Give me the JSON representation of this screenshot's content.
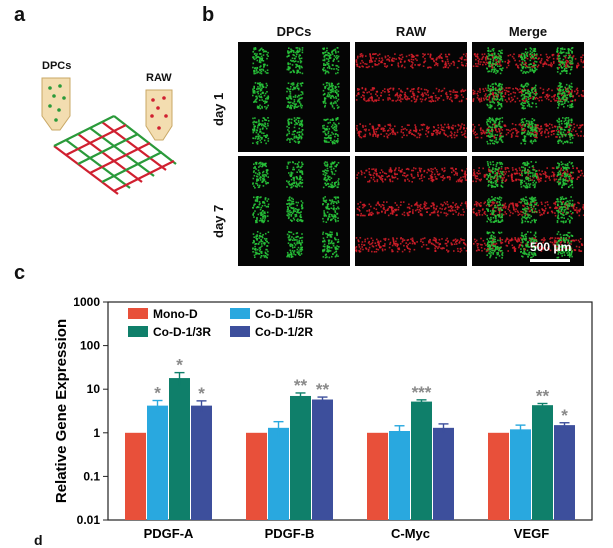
{
  "panels": {
    "a": "a",
    "b": "b",
    "c": "c",
    "d": "d"
  },
  "schematic": {
    "label_left": "DPCs",
    "label_right": "RAW"
  },
  "microscopy": {
    "columns": [
      "DPCs",
      "RAW",
      "Merge"
    ],
    "rows": [
      "day 1",
      "day 7"
    ],
    "scale_bar": "500 μm",
    "colors": {
      "green": "#27c43a",
      "red": "#d81e2a",
      "background": "#050505"
    }
  },
  "chart_data": {
    "type": "bar",
    "ylabel": "Relative Gene Expression",
    "yscale": "log",
    "ylim": [
      0.01,
      1000
    ],
    "yticks": [
      "0.01",
      "0.1",
      "1",
      "10",
      "100",
      "1000"
    ],
    "categories": [
      "PDGF-A",
      "PDGF-B",
      "C-Myc",
      "VEGF"
    ],
    "legend_placement": "top-left",
    "series": [
      {
        "name": "Mono-D",
        "color": "#e8503a",
        "values": [
          1,
          1,
          1,
          1
        ],
        "errors": [
          0,
          0,
          0,
          0
        ]
      },
      {
        "name": "Co-D-1/5R",
        "color": "#29a8df",
        "values": [
          4.2,
          1.3,
          1.1,
          1.2
        ],
        "errors": [
          1.3,
          0.5,
          0.35,
          0.3
        ]
      },
      {
        "name": "Co-D-1/3R",
        "color": "#0f7f6a",
        "values": [
          18,
          7,
          5.2,
          4.3
        ],
        "errors": [
          6,
          1.2,
          0.5,
          0.4
        ]
      },
      {
        "name": "Co-D-1/2R",
        "color": "#3d4f9c",
        "values": [
          4.2,
          5.8,
          1.3,
          1.5
        ],
        "errors": [
          1.2,
          0.8,
          0.3,
          0.2
        ]
      }
    ],
    "significance": [
      {
        "category": 0,
        "series": 1,
        "text": "*"
      },
      {
        "category": 0,
        "series": 2,
        "text": "*"
      },
      {
        "category": 0,
        "series": 3,
        "text": "*"
      },
      {
        "category": 1,
        "series": 2,
        "text": "**"
      },
      {
        "category": 1,
        "series": 3,
        "text": "**"
      },
      {
        "category": 2,
        "series": 2,
        "text": "***"
      },
      {
        "category": 3,
        "series": 2,
        "text": "**"
      },
      {
        "category": 3,
        "series": 3,
        "text": "*"
      }
    ]
  }
}
